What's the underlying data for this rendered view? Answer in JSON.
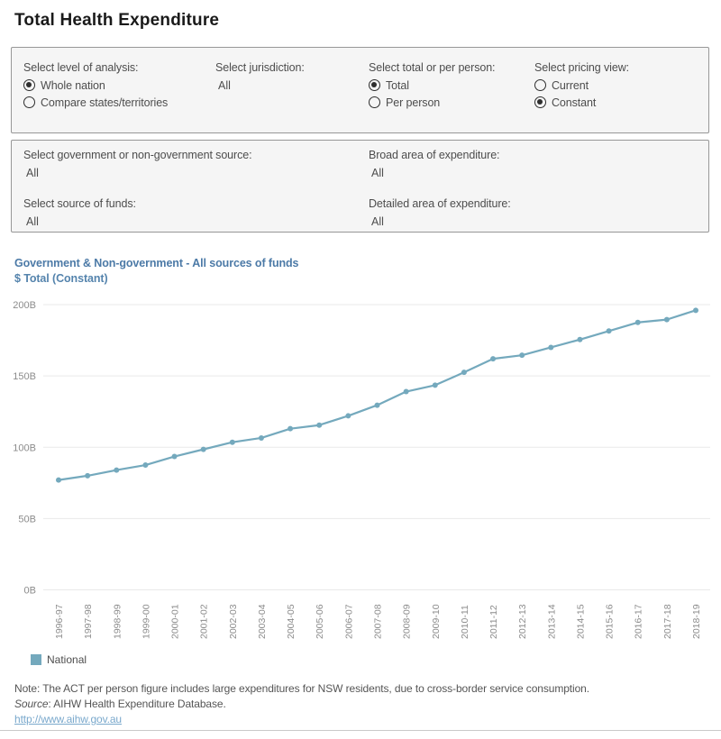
{
  "title": "Total Health Expenditure",
  "filters_row1": {
    "level_of_analysis": {
      "label": "Select level of analysis:",
      "options": [
        {
          "label": "Whole nation",
          "selected": true
        },
        {
          "label": "Compare states/territories",
          "selected": false
        }
      ]
    },
    "jurisdiction": {
      "label": "Select jurisdiction:",
      "value": "All"
    },
    "total_or_per_person": {
      "label": "Select total or per person:",
      "options": [
        {
          "label": "Total",
          "selected": true
        },
        {
          "label": "Per person",
          "selected": false
        }
      ]
    },
    "pricing_view": {
      "label": "Select pricing view:",
      "options": [
        {
          "label": "Current",
          "selected": false
        },
        {
          "label": "Constant",
          "selected": true
        }
      ]
    }
  },
  "filters_row2": {
    "gov_source": {
      "label": "Select government or non-government source:",
      "value": "All"
    },
    "source_of_funds": {
      "label": "Select source of funds:",
      "value": "All"
    },
    "broad_area": {
      "label": "Broad area of expenditure:",
      "value": "All"
    },
    "detailed_area": {
      "label": "Detailed area of expenditure:",
      "value": "All"
    }
  },
  "chart": {
    "title": "Government & Non-government - All sources of funds",
    "subtitle": "$ Total (Constant)",
    "legend_label": "National"
  },
  "chart_data": {
    "type": "line",
    "title": "Government & Non-government - All sources of funds",
    "subtitle": "$ Total (Constant)",
    "x": [
      "1996-97",
      "1997-98",
      "1998-99",
      "1999-00",
      "2000-01",
      "2001-02",
      "2002-03",
      "2003-04",
      "2004-05",
      "2005-06",
      "2006-07",
      "2007-08",
      "2008-09",
      "2009-10",
      "2010-11",
      "2011-12",
      "2012-13",
      "2013-14",
      "2014-15",
      "2015-16",
      "2016-17",
      "2017-18",
      "2018-19"
    ],
    "series": [
      {
        "name": "National",
        "color": "#74a9bd",
        "values": [
          77,
          80,
          84,
          87.5,
          93.5,
          98.5,
          103.5,
          106.5,
          113,
          115.5,
          122,
          129.5,
          139,
          143.5,
          152.5,
          162,
          164.5,
          170,
          175.5,
          181.5,
          187.5,
          189.5,
          196
        ]
      }
    ],
    "ylabel_unit": "B",
    "ytick_values": [
      0,
      50,
      100,
      150,
      200
    ],
    "ytick_labels": [
      "0B",
      "50B",
      "100B",
      "150B",
      "200B"
    ],
    "ylim": [
      0,
      200
    ],
    "grid": "horizontal",
    "legend_position": "bottom-left",
    "colors": {
      "line": "#74a9bd",
      "grid": "#e9e9e9",
      "axis_text": "#8c8c8c"
    }
  },
  "footer": {
    "note": "Note: The ACT per person figure includes large expenditures for NSW residents, due to cross-border service consumption.",
    "source_word": "Source",
    "source_rest": ": AIHW Health Expenditure Database.",
    "link": "http://www.aihw.gov.au"
  }
}
